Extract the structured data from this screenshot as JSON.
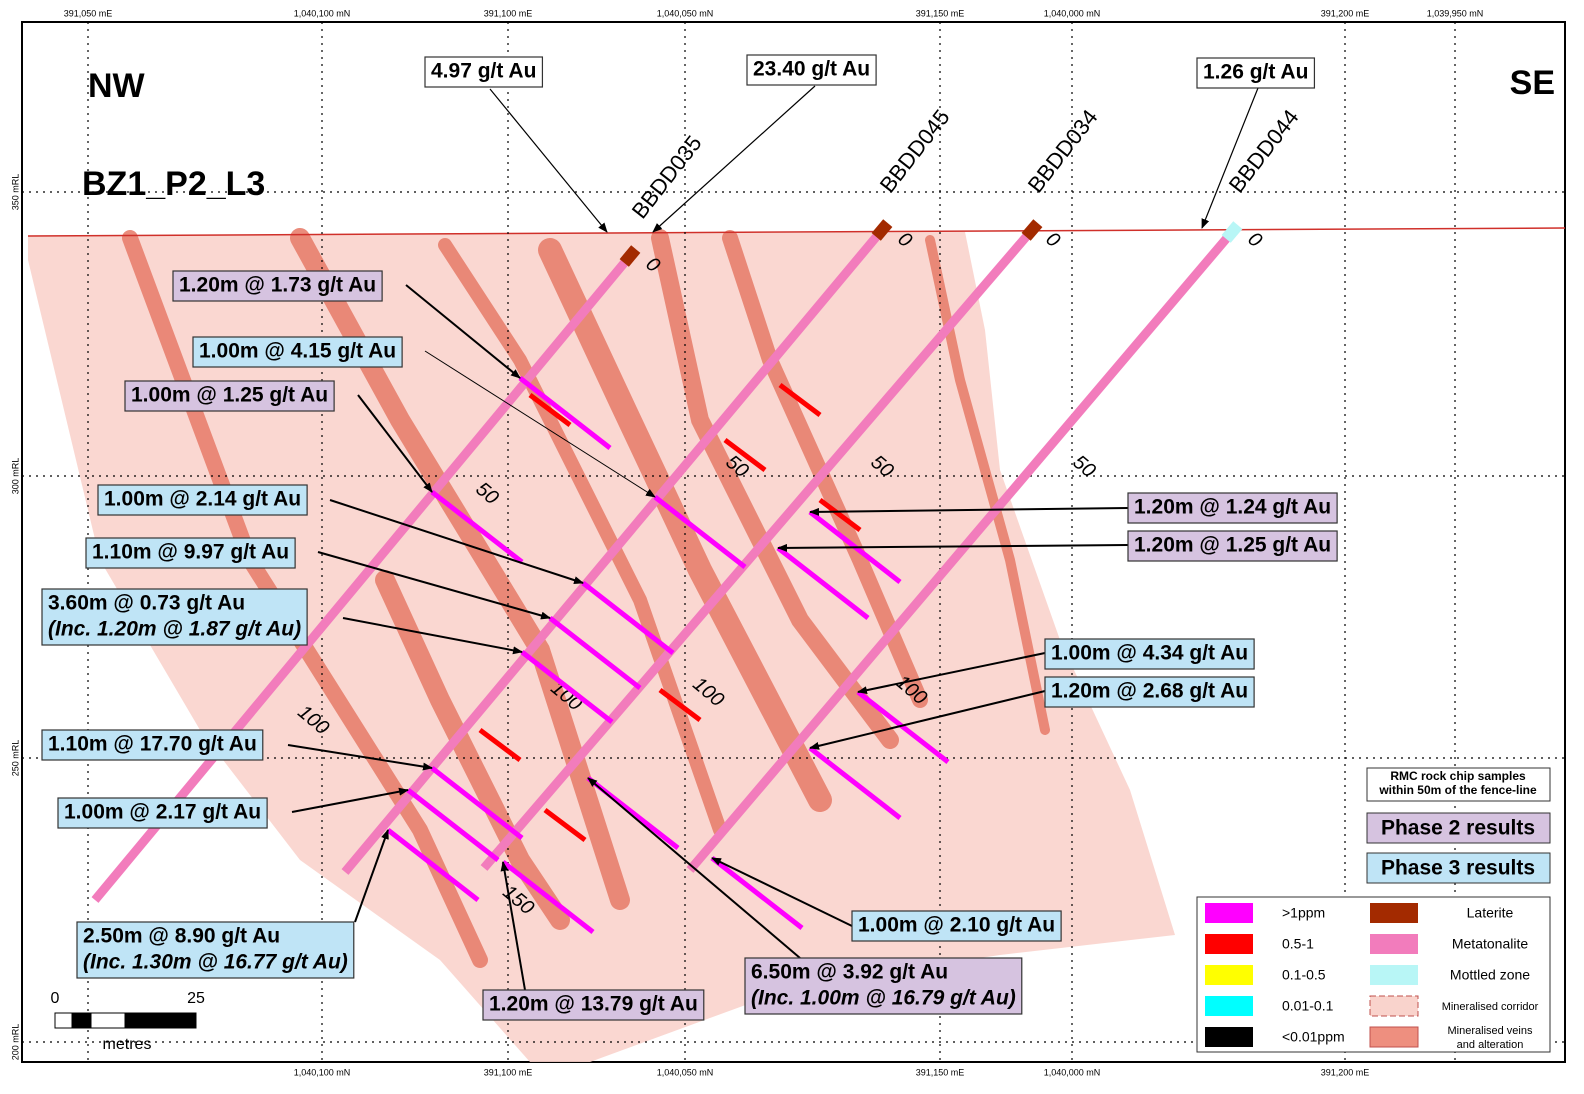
{
  "coordinates": {
    "top": [
      "391,050 mE",
      "1,040,100 mN",
      "391,100 mE",
      "1,040,050 mN",
      "391,150 mE",
      "1,040,000 mN",
      "391,200 mE",
      "1,039,950 mN"
    ],
    "bottom": [
      "1,040,100 mN",
      "391,100 mE",
      "1,040,050 mN",
      "391,150 mE",
      "1,040,000 mN",
      "391,200 mE"
    ]
  },
  "elevations": [
    "350 mRL",
    "300 mRL",
    "250 mRL",
    "200 mRL"
  ],
  "direction_left": "NW",
  "direction_right": "SE",
  "section_name": "BZ1_P2_L3",
  "holes": [
    {
      "name": "BBDD035",
      "depths": [
        0,
        50,
        100
      ]
    },
    {
      "name": "BBDD045",
      "depths": [
        0,
        50,
        100
      ]
    },
    {
      "name": "BBDD034",
      "depths": [
        0,
        50,
        100,
        150
      ]
    },
    {
      "name": "BBDD044",
      "depths": [
        0,
        50,
        100
      ]
    }
  ],
  "surface_samples": [
    "4.97 g/t Au",
    "23.40 g/t Au",
    "1.26 g/t Au"
  ],
  "intercepts": [
    {
      "lines": [
        "1.20m @ 1.73 g/t Au"
      ],
      "color": "#d6c3e0"
    },
    {
      "lines": [
        "1.00m @ 4.15 g/t Au"
      ],
      "color": "#bfe4f6"
    },
    {
      "lines": [
        "1.00m @ 1.25 g/t Au"
      ],
      "color": "#d6c3e0"
    },
    {
      "lines": [
        "1.00m @ 2.14 g/t Au"
      ],
      "color": "#bfe4f6"
    },
    {
      "lines": [
        "1.10m @ 9.97 g/t Au"
      ],
      "color": "#bfe4f6"
    },
    {
      "lines": [
        "3.60m @ 0.73 g/t Au",
        "(Inc. 1.20m @ 1.87 g/t Au)"
      ],
      "color": "#bfe4f6"
    },
    {
      "lines": [
        "1.10m @ 17.70 g/t Au"
      ],
      "color": "#bfe4f6"
    },
    {
      "lines": [
        "1.00m @ 2.17 g/t Au"
      ],
      "color": "#bfe4f6"
    },
    {
      "lines": [
        "2.50m @ 8.90 g/t Au",
        "(Inc. 1.30m @ 16.77 g/t Au)"
      ],
      "color": "#bfe4f6"
    },
    {
      "lines": [
        "1.20m @ 13.79 g/t Au"
      ],
      "color": "#d6c3e0"
    },
    {
      "lines": [
        "6.50m @ 3.92 g/t Au",
        "(Inc. 1.00m @ 16.79 g/t Au)"
      ],
      "color": "#d6c3e0"
    },
    {
      "lines": [
        "1.00m @ 2.10 g/t Au"
      ],
      "color": "#bfe4f6"
    },
    {
      "lines": [
        "1.20m @ 1.24 g/t Au"
      ],
      "color": "#d6c3e0"
    },
    {
      "lines": [
        "1.20m @ 1.25 g/t Au"
      ],
      "color": "#d6c3e0"
    },
    {
      "lines": [
        "1.00m @ 4.34 g/t Au"
      ],
      "color": "#bfe4f6"
    },
    {
      "lines": [
        "1.20m @ 2.68 g/t Au"
      ],
      "color": "#bfe4f6"
    }
  ],
  "rock_chip_note": [
    "RMC rock chip samples",
    "within 50m of the fence-line"
  ],
  "phase_keys": [
    {
      "label": "Phase 2 results",
      "color": "#d6c3e0"
    },
    {
      "label": "Phase 3 results",
      "color": "#bfe4f6"
    }
  ],
  "legend": {
    "grades": [
      {
        "label": ">1ppm",
        "color": "#ff00ff"
      },
      {
        "label": "0.5-1",
        "color": "#ff0000"
      },
      {
        "label": "0.1-0.5",
        "color": "#ffff00"
      },
      {
        "label": "0.01-0.1",
        "color": "#00ffff"
      },
      {
        "label": "<0.01ppm",
        "color": "#000000"
      }
    ],
    "units": [
      {
        "lines": [
          "Laterite"
        ],
        "color": "#a32a00"
      },
      {
        "lines": [
          "Metatonalite"
        ],
        "color": "#f27cbc"
      },
      {
        "lines": [
          "Mottled zone"
        ],
        "color": "#b8f6f6"
      },
      {
        "lines": [
          "Mineralised corridor"
        ],
        "color": "#f9d3cc"
      },
      {
        "lines": [
          "Mineralised veins",
          "and alteration"
        ],
        "color": "#ee8f7f"
      }
    ]
  },
  "scale": {
    "start": 0,
    "end": 25,
    "unit": "metres"
  }
}
